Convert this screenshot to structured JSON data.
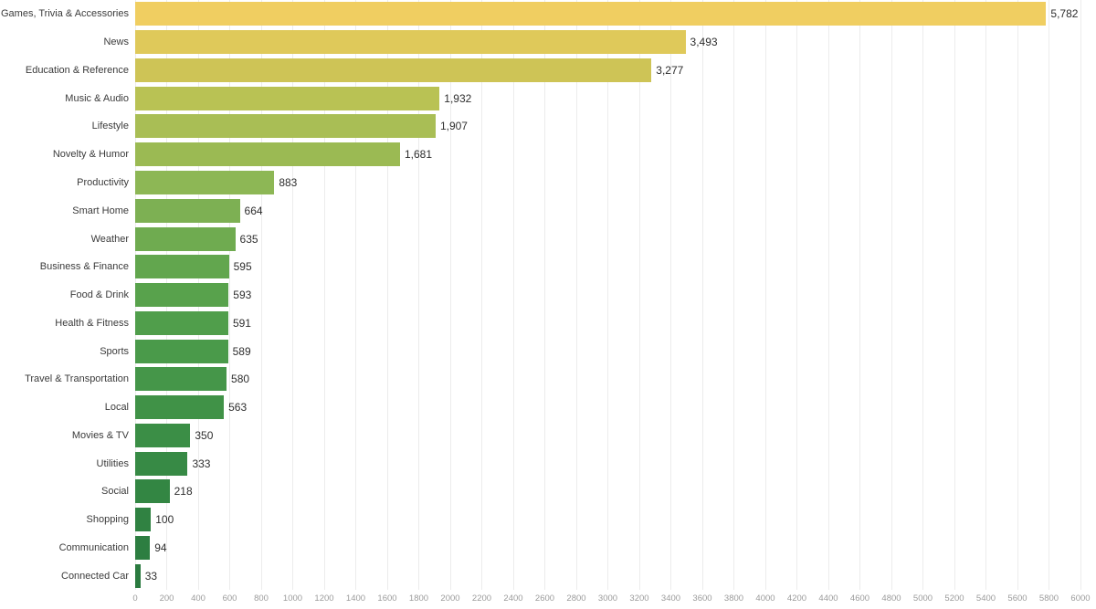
{
  "chart_data": {
    "type": "bar",
    "orientation": "horizontal",
    "title": "",
    "xlabel": "",
    "ylabel": "",
    "categories": [
      "Games, Trivia & Accessories",
      "News",
      "Education & Reference",
      "Music & Audio",
      "Lifestyle",
      "Novelty & Humor",
      "Productivity",
      "Smart Home",
      "Weather",
      "Business & Finance",
      "Food & Drink",
      "Health & Fitness",
      "Sports",
      "Travel & Transportation",
      "Local",
      "Movies & TV",
      "Utilities",
      "Social",
      "Shopping",
      "Communication",
      "Connected Car"
    ],
    "values": [
      5782,
      3493,
      3277,
      1932,
      1907,
      1681,
      883,
      664,
      635,
      595,
      593,
      591,
      589,
      580,
      563,
      350,
      333,
      218,
      100,
      94,
      33
    ],
    "value_labels": [
      "5,782",
      "3,493",
      "3,277",
      "1,932",
      "1,907",
      "1,681",
      "883",
      "664",
      "635",
      "595",
      "593",
      "591",
      "589",
      "580",
      "563",
      "350",
      "333",
      "218",
      "100",
      "94",
      "33"
    ],
    "bar_colors": [
      "#F0CE61",
      "#DFC95A",
      "#CEC456",
      "#B9C254",
      "#A9BE55",
      "#9BBA53",
      "#8DB755",
      "#7DB053",
      "#6FAB50",
      "#62A64E",
      "#58A24C",
      "#509E4B",
      "#4A9A4A",
      "#459649",
      "#409247",
      "#3B8E46",
      "#378A45",
      "#338643",
      "#308242",
      "#2D7E41",
      "#2A7A3F"
    ],
    "xlim": [
      0,
      6000
    ],
    "x_ticks": [
      0,
      200,
      400,
      600,
      800,
      1000,
      1200,
      1400,
      1600,
      1800,
      2000,
      2200,
      2400,
      2600,
      2800,
      3000,
      3200,
      3400,
      3600,
      3800,
      4000,
      4200,
      4400,
      4600,
      4800,
      5000,
      5200,
      5400,
      5600,
      5800,
      6000
    ],
    "grid": "vertical",
    "legend": "none",
    "colors": {
      "background": "#ffffff",
      "gridline": "#ececec",
      "category_label": "#3b3b3b",
      "value_label": "#2e2e2e",
      "tick_label": "#9b9b9b"
    }
  }
}
